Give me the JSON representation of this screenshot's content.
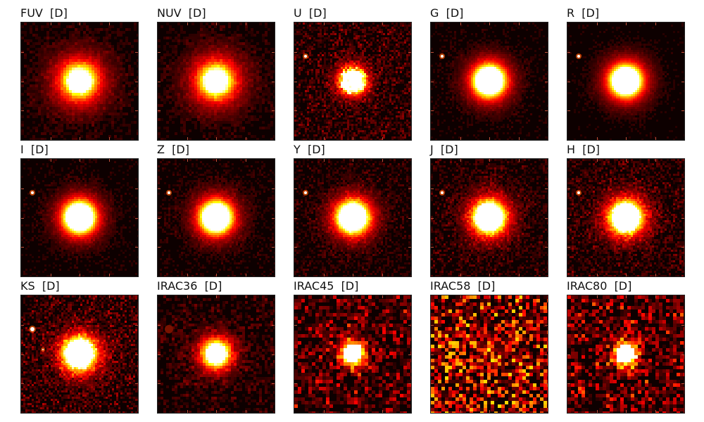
{
  "panels": [
    {
      "band": "FUV",
      "tag": "[D]"
    },
    {
      "band": "NUV",
      "tag": "[D]"
    },
    {
      "band": "U",
      "tag": "[D]"
    },
    {
      "band": "G",
      "tag": "[D]"
    },
    {
      "band": "R",
      "tag": "[D]"
    },
    {
      "band": "I",
      "tag": "[D]"
    },
    {
      "band": "Z",
      "tag": "[D]"
    },
    {
      "band": "Y",
      "tag": "[D]"
    },
    {
      "band": "J",
      "tag": "[D]"
    },
    {
      "band": "H",
      "tag": "[D]"
    },
    {
      "band": "KS",
      "tag": "[D]"
    },
    {
      "band": "IRAC36",
      "tag": "[D]"
    },
    {
      "band": "IRAC45",
      "tag": "[D]"
    },
    {
      "band": "IRAC58",
      "tag": "[D]"
    },
    {
      "band": "IRAC80",
      "tag": "[D]"
    }
  ],
  "colors": {
    "background": "#0d0000",
    "core": "#ffffff",
    "glow": "#ff8a1a",
    "tick": "#c0503a"
  },
  "colormap": "hot"
}
